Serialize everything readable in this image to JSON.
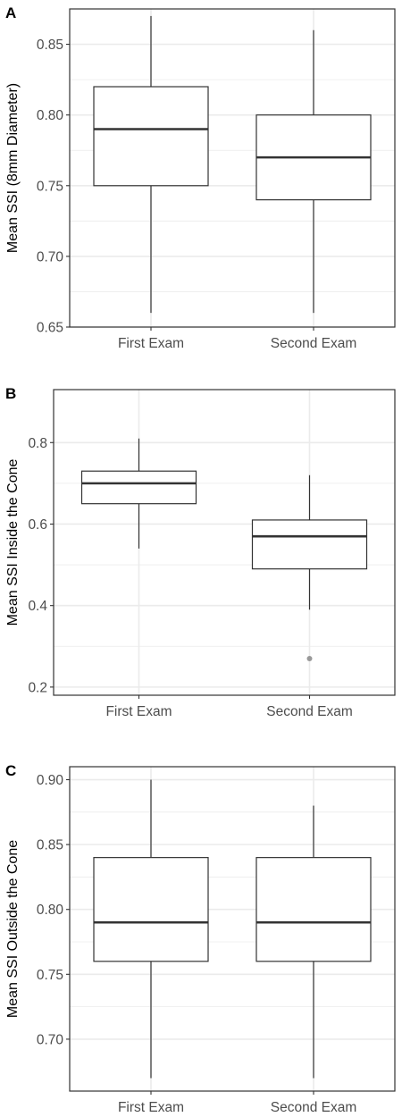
{
  "chart_data": [
    {
      "type": "box",
      "panel_label": "A",
      "ylabel": "Mean SSI (8mm Diameter)",
      "xlabel": "",
      "categories": [
        "First Exam",
        "Second Exam"
      ],
      "ylim": [
        0.65,
        0.875
      ],
      "yticks": [
        0.65,
        0.7,
        0.75,
        0.8,
        0.85
      ],
      "ytick_labels": [
        "0.65",
        "0.70",
        "0.75",
        "0.80",
        "0.85"
      ],
      "grid": true,
      "boxes": [
        {
          "category": "First Exam",
          "min": 0.66,
          "q1": 0.75,
          "median": 0.79,
          "q3": 0.82,
          "max": 0.87,
          "outliers": []
        },
        {
          "category": "Second Exam",
          "min": 0.66,
          "q1": 0.74,
          "median": 0.77,
          "q3": 0.8,
          "max": 0.86,
          "outliers": []
        }
      ]
    },
    {
      "type": "box",
      "panel_label": "B",
      "ylabel": "Mean SSI Inside the Cone",
      "xlabel": "",
      "categories": [
        "First Exam",
        "Second Exam"
      ],
      "ylim": [
        0.18,
        0.93
      ],
      "yticks": [
        0.2,
        0.4,
        0.6,
        0.8
      ],
      "ytick_labels": [
        "0.2",
        "0.4",
        "0.6",
        "0.8"
      ],
      "grid": true,
      "boxes": [
        {
          "category": "First Exam",
          "min": 0.54,
          "q1": 0.65,
          "median": 0.7,
          "q3": 0.73,
          "max": 0.81,
          "outliers": []
        },
        {
          "category": "Second Exam",
          "min": 0.39,
          "q1": 0.49,
          "median": 0.57,
          "q3": 0.61,
          "max": 0.72,
          "outliers": [
            0.27
          ]
        }
      ]
    },
    {
      "type": "box",
      "panel_label": "C",
      "ylabel": "Mean SSI Outside the Cone",
      "xlabel": "",
      "categories": [
        "First Exam",
        "Second Exam"
      ],
      "ylim": [
        0.66,
        0.91
      ],
      "yticks": [
        0.7,
        0.75,
        0.8,
        0.85,
        0.9
      ],
      "ytick_labels": [
        "0.70",
        "0.75",
        "0.80",
        "0.85",
        "0.90"
      ],
      "grid": true,
      "boxes": [
        {
          "category": "First Exam",
          "min": 0.67,
          "q1": 0.76,
          "median": 0.79,
          "q3": 0.84,
          "max": 0.9,
          "outliers": []
        },
        {
          "category": "Second Exam",
          "min": 0.67,
          "q1": 0.76,
          "median": 0.79,
          "q3": 0.84,
          "max": 0.88,
          "outliers": []
        }
      ]
    }
  ],
  "colors": {
    "grid": "#ebebeb",
    "axis_border": "#333333",
    "box_fill": "#ffffff",
    "box_line": "#333333",
    "outlier": "#999999"
  }
}
